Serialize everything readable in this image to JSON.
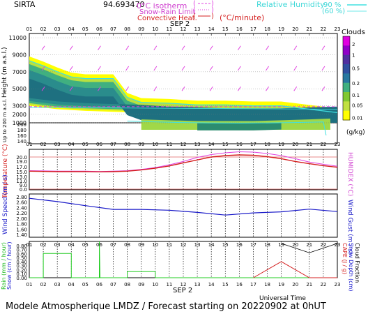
{
  "header": {
    "station": "SIRTA",
    "coords": "94.693470",
    "legend_iso": "0°C isotherm",
    "legend_snow": "Snow-Rain Limit",
    "legend_conv": "Convective Heat.",
    "legend_conv_unit": "(°C/minute)",
    "legend_rh": "Relative Humidity",
    "rh_90": "90 %",
    "rh_60": "(60 %)"
  },
  "date_label": "SEP  2",
  "footer": {
    "main": "Modele Atmospherique LMDZ / Forecast starting on 20220902 at 0hUT",
    "time_axis": "Universal Time"
  },
  "colors": {
    "temperature": "#d41c1c",
    "humidex": "#e040e0",
    "wind": "#1818c8",
    "rain": "#22cc22",
    "cape": "#d42020",
    "snow": "#2020d0",
    "rh": "#40e0e0",
    "iso": "#e040e0"
  },
  "chart_data": [
    {
      "type": "heatmap",
      "name": "clouds",
      "x_ticks": [
        "01",
        "02",
        "03",
        "04",
        "05",
        "06",
        "07",
        "08",
        "09",
        "10",
        "11",
        "12",
        "13",
        "14",
        "15",
        "16",
        "17",
        "18",
        "19",
        "20",
        "21",
        "22",
        "23"
      ],
      "ylabel": "Height  (m a.s.l.)",
      "ylabel_low": "Up to 200 m a.s.l.",
      "y_ticks_upper": [
        11000,
        9000,
        7000,
        5000,
        3000,
        2000,
        1000
      ],
      "y_ticks_lower": [
        200,
        180,
        160,
        140
      ],
      "colorbar_title": "Clouds",
      "colorbar_unit": "(g/kg)",
      "colorbar_labels": [
        "2",
        "1",
        "0.5",
        "0.2",
        "0.1",
        "0.05",
        "0.01"
      ],
      "cloud_top": [
        [
          1,
          8800
        ],
        [
          2,
          8200
        ],
        [
          3,
          7500
        ],
        [
          4,
          6900
        ],
        [
          5,
          6700
        ],
        [
          7,
          6700
        ],
        [
          8,
          4500
        ],
        [
          9,
          3900
        ],
        [
          11,
          3800
        ],
        [
          13,
          3600
        ],
        [
          15,
          3600
        ],
        [
          17,
          3500
        ],
        [
          19,
          3500
        ],
        [
          21,
          3100
        ],
        [
          23,
          2700
        ]
      ],
      "cloud_base": [
        [
          1,
          3000
        ],
        [
          3,
          2600
        ],
        [
          5,
          2400
        ],
        [
          7,
          2300
        ],
        [
          9,
          2200
        ],
        [
          11,
          2000
        ],
        [
          13,
          1900
        ],
        [
          15,
          1800
        ],
        [
          17,
          1800
        ],
        [
          19,
          1800
        ],
        [
          21,
          1900
        ],
        [
          23,
          2000
        ]
      ],
      "low_cloud": [
        [
          9,
          900
        ],
        [
          11,
          800
        ],
        [
          13,
          700
        ],
        [
          15,
          700
        ],
        [
          17,
          700
        ],
        [
          19,
          800
        ],
        [
          21,
          900
        ],
        [
          22.5,
          1000
        ]
      ]
    },
    {
      "type": "line",
      "name": "temperature",
      "ylabel": "Temperature  (°C)",
      "ylabel_right": "HUMIDEX  (°C)",
      "y_ticks": [
        20.0,
        19.0,
        17.0,
        15.0,
        13.0,
        11.0,
        9.0,
        0.0
      ],
      "x": [
        1,
        2,
        3,
        4,
        5,
        6,
        7,
        8,
        9,
        10,
        11,
        12,
        13,
        14,
        15,
        16,
        17,
        18,
        19,
        20,
        21,
        22,
        23
      ],
      "series": [
        {
          "name": "temperature",
          "values": [
            15.2,
            15.1,
            15.0,
            15.0,
            15.0,
            14.9,
            15.0,
            15.2,
            15.7,
            16.4,
            17.3,
            18.4,
            19.3,
            20.0,
            20.4,
            20.6,
            20.5,
            20.1,
            19.6,
            18.9,
            18.1,
            17.4,
            16.8
          ]
        },
        {
          "name": "humidex",
          "values": [
            15.4,
            15.3,
            15.2,
            15.2,
            15.2,
            15.1,
            15.2,
            15.4,
            15.9,
            16.7,
            17.7,
            18.9,
            19.9,
            20.7,
            21.2,
            21.5,
            21.4,
            21.0,
            20.4,
            19.6,
            18.7,
            17.9,
            17.2
          ]
        }
      ]
    },
    {
      "type": "line",
      "name": "wind",
      "ylabel": "Wind Speed  (m / s)",
      "ylabel_right": "Wind Gust  (m / s)",
      "y_ticks": [
        2.8,
        2.6,
        2.4,
        2.2,
        2.0,
        1.8,
        1.6,
        1.4
      ],
      "x": [
        1,
        3,
        5,
        7,
        9,
        11,
        13,
        15,
        17,
        19,
        21,
        23
      ],
      "series": [
        {
          "name": "wind_speed",
          "values": [
            2.74,
            2.62,
            2.47,
            2.33,
            2.33,
            2.3,
            2.22,
            2.12,
            2.2,
            2.24,
            2.34,
            2.25
          ]
        }
      ]
    },
    {
      "type": "line",
      "name": "precipitation",
      "ylabel": "Rain  (mm / hour)",
      "ylabel_2": "Snow  (cm / hour)",
      "ylabel_right": "CAPE  (J / g)",
      "ylabel_right_2": "Snow Depth  (cm)",
      "ylabel_right_3": "Cloud Fraction",
      "y_ticks": [
        0.8,
        0.7,
        0.6,
        0.5,
        0.4,
        0.3,
        0.2,
        0.1,
        0.0
      ],
      "series": [
        {
          "name": "rain",
          "points": [
            [
              1,
              0
            ],
            [
              2,
              0
            ],
            [
              2,
              0.6
            ],
            [
              4,
              0.6
            ],
            [
              4,
              0
            ],
            [
              6,
              0
            ],
            [
              6,
              0.9
            ],
            [
              6.05,
              0
            ],
            [
              8,
              0
            ],
            [
              8,
              0.15
            ],
            [
              10,
              0.15
            ],
            [
              10,
              0
            ],
            [
              23,
              0
            ]
          ]
        },
        {
          "name": "cape",
          "points": [
            [
              17,
              0
            ],
            [
              19,
              0.4
            ],
            [
              21,
              0
            ],
            [
              23,
              0
            ]
          ]
        },
        {
          "name": "cloud_fraction",
          "points": [
            [
              19,
              0.85
            ],
            [
              21,
              0.62
            ],
            [
              23,
              0.85
            ]
          ]
        }
      ]
    }
  ]
}
